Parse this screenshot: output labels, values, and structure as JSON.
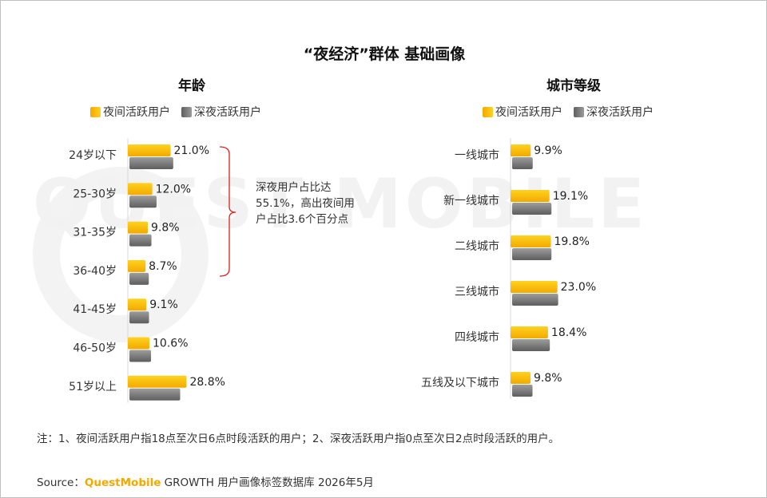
{
  "title": "“夜经济”群体 基础画像",
  "legend": {
    "night": "夜间活跃用户",
    "late": "深夜活跃用户"
  },
  "colors": {
    "night": "#FFC000",
    "late": "#808080",
    "bracket": "#e0201b"
  },
  "annotation": "深夜用户占比达55.1%，高出夜间用户占比3.6个百分点",
  "note": "注：1、夜间活跃用户指18点至次日6点时段活跃的用户；2、深夜活跃用户指0点至次日2点时段活跃的用户。",
  "source": {
    "prefix": "Source：",
    "brand": "QuestMobile",
    "rest": " GROWTH 用户画像标签数据库 2026年5月"
  },
  "watermark": "QUEST MOBILE",
  "chart_data": [
    {
      "type": "bar",
      "orientation": "horizontal",
      "title": "年龄",
      "categories": [
        "24岁以下",
        "25-30岁",
        "31-35岁",
        "36-40岁",
        "41-45岁",
        "46-50岁",
        "51岁以上"
      ],
      "series": [
        {
          "name": "夜间活跃用户",
          "values": [
            21.0,
            12.0,
            9.8,
            8.7,
            9.1,
            10.6,
            28.8
          ],
          "labels": [
            "21.0%",
            "12.0%",
            "9.8%",
            "8.7%",
            "9.1%",
            "10.6%",
            "28.8%"
          ]
        },
        {
          "name": "深夜活跃用户",
          "values": [
            21.5,
            13.3,
            10.8,
            9.5,
            9.6,
            10.6,
            24.9
          ]
        }
      ],
      "unit": "%",
      "legend_position": "top"
    },
    {
      "type": "bar",
      "orientation": "horizontal",
      "title": "城市等级",
      "categories": [
        "一线城市",
        "新一线城市",
        "二线城市",
        "三线城市",
        "四线城市",
        "五线及以下城市"
      ],
      "series": [
        {
          "name": "夜间活跃用户",
          "values": [
            9.9,
            19.1,
            19.8,
            23.0,
            18.4,
            9.8
          ],
          "labels": [
            "9.9%",
            "19.1%",
            "19.8%",
            "23.0%",
            "18.4%",
            "9.8%"
          ]
        },
        {
          "name": "深夜活跃用户",
          "values": [
            10.1,
            19.3,
            19.3,
            22.6,
            18.5,
            10.0
          ]
        }
      ],
      "unit": "%",
      "legend_position": "top"
    }
  ]
}
